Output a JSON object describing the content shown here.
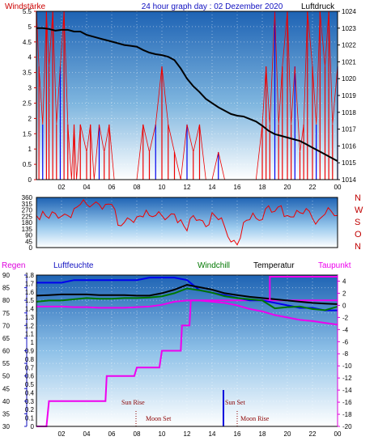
{
  "header": {
    "title": "24 hour graph day : 02 Dezember 2020",
    "left_label": "Windstärke",
    "right_label": "Luftdruck",
    "colors": {
      "title": "#1010c0",
      "left": "#cc0000",
      "right": "#000000"
    }
  },
  "middle": {
    "compass": [
      "N",
      "W",
      "S",
      "O",
      "N"
    ]
  },
  "bottom_header": {
    "regen": "Regen",
    "luftfeuchte": "Luftfeuchte",
    "windchill": "Windchill",
    "temperatur": "Temperatur",
    "taupunkt": "Taupunkt",
    "colors": {
      "regen": "#dd00dd",
      "luftfeuchte": "#1010c0",
      "windchill": "#007700",
      "temperatur": "#000000",
      "taupunkt": "#ee00ee"
    }
  },
  "time_axis": {
    "ticks": [
      "02",
      "04",
      "06",
      "08",
      "10",
      "12",
      "14",
      "16",
      "18",
      "20",
      "22",
      "00"
    ]
  },
  "events": {
    "sun_rise": "Sun Rise",
    "moon_set": "Moon Set",
    "sun_set": "Sun Set",
    "moon_rise": "Moon Rise"
  },
  "chart_data": [
    {
      "type": "line",
      "name": "wind-pressure",
      "x_unit": "hour",
      "xlim": [
        0,
        24
      ],
      "series": [
        {
          "name": "Luftdruck",
          "color": "#000000",
          "axis": "right",
          "x": [
            0,
            0.5,
            1,
            1.5,
            2,
            2.5,
            3,
            3.5,
            4,
            4.5,
            5,
            5.5,
            6,
            6.5,
            7,
            7.5,
            8,
            8.5,
            9,
            9.5,
            10,
            10.5,
            11,
            11.5,
            12,
            12.5,
            13,
            13.5,
            14,
            14.5,
            15,
            15.5,
            16,
            16.5,
            17,
            17.5,
            18,
            18.5,
            19,
            19.5,
            20,
            20.5,
            21,
            21.5,
            22,
            22.5,
            23,
            23.5,
            24
          ],
          "values": [
            1023.0,
            1023.0,
            1022.95,
            1022.85,
            1022.9,
            1022.9,
            1022.8,
            1022.8,
            1022.6,
            1022.5,
            1022.4,
            1022.3,
            1022.2,
            1022.1,
            1022.0,
            1021.95,
            1021.9,
            1021.7,
            1021.55,
            1021.45,
            1021.4,
            1021.3,
            1021.1,
            1020.6,
            1020.0,
            1019.55,
            1019.2,
            1018.8,
            1018.55,
            1018.3,
            1018.1,
            1017.9,
            1017.8,
            1017.75,
            1017.6,
            1017.45,
            1017.2,
            1016.9,
            1016.7,
            1016.6,
            1016.5,
            1016.4,
            1016.3,
            1016.1,
            1015.9,
            1015.7,
            1015.5,
            1015.3,
            1015.1
          ]
        },
        {
          "name": "Windstärke",
          "color": "#ee0000",
          "axis": "left",
          "x": [
            0,
            0.2,
            0.5,
            0.8,
            1.0,
            1.3,
            1.6,
            1.9,
            2.2,
            2.5,
            2.8,
            3.0,
            3.2,
            3.5,
            4.0,
            4.3,
            4.6,
            5.0,
            5.4,
            5.8,
            6.2,
            6.6,
            7.0,
            7.5,
            8.0,
            8.5,
            9.0,
            9.5,
            10.0,
            10.5,
            11.0,
            11.5,
            12.0,
            12.5,
            13.0,
            13.5,
            14.0,
            14.5,
            15.0,
            15.5,
            16.0,
            16.5,
            17.0,
            17.5,
            18.0,
            18.3,
            18.6,
            19.0,
            19.3,
            19.6,
            20.0,
            20.3,
            20.6,
            21.0,
            21.3,
            21.6,
            22.0,
            22.3,
            22.6,
            23.0,
            23.3,
            23.6,
            24.0
          ],
          "values": [
            5.5,
            3.7,
            1.8,
            5.5,
            3.7,
            5.5,
            1.8,
            3.7,
            5.5,
            1.8,
            0,
            1.8,
            0,
            1.8,
            0.9,
            1.8,
            0,
            1.8,
            0.9,
            1.8,
            0,
            0,
            0,
            0,
            0,
            1.8,
            0.9,
            1.8,
            3.7,
            1.8,
            0.9,
            0,
            1.8,
            0.9,
            1.8,
            0,
            0,
            0.9,
            0,
            0,
            0,
            0,
            0,
            0,
            1.8,
            3.7,
            1.8,
            5.5,
            1.8,
            3.7,
            5.5,
            1.8,
            3.7,
            0.9,
            1.8,
            5.5,
            3.7,
            1.8,
            5.5,
            3.7,
            5.5,
            1.8,
            3.7
          ],
          "ylim": [
            0,
            5.5
          ]
        }
      ],
      "left_ticks": [
        "0",
        "0.5",
        "1",
        "1.5",
        "2",
        "2.5",
        "3",
        "3.5",
        "4",
        "4.5",
        "5",
        "5.5"
      ],
      "right_ticks": [
        "1014",
        "1015",
        "1016",
        "1017",
        "1018",
        "1019",
        "1020",
        "1021",
        "1022",
        "1023",
        "1024"
      ],
      "ylim_right": [
        1014,
        1024
      ]
    },
    {
      "type": "line",
      "name": "wind-direction",
      "x_unit": "hour",
      "xlim": [
        0,
        24
      ],
      "ylim": [
        0,
        360
      ],
      "left_ticks": [
        "0",
        "45",
        "90",
        "135",
        "180",
        "225",
        "270",
        "315",
        "360"
      ],
      "series": [
        {
          "name": "direction",
          "color": "#ee0000",
          "x": [
            0,
            0.5,
            1,
            1.5,
            2,
            2.5,
            3,
            3.5,
            4,
            4.5,
            5,
            5.5,
            6,
            6.5,
            7,
            7.5,
            8,
            8.5,
            9,
            9.5,
            10,
            10.5,
            11,
            11.5,
            12,
            12.5,
            13,
            13.5,
            14,
            14.5,
            15,
            15.5,
            16,
            16.5,
            17,
            17.5,
            18,
            18.5,
            19,
            19.5,
            20,
            20.5,
            21,
            21.5,
            22,
            22.5,
            23,
            23.5,
            24
          ],
          "values": [
            230,
            260,
            210,
            245,
            225,
            230,
            280,
            310,
            310,
            310,
            310,
            310,
            310,
            160,
            180,
            200,
            220,
            220,
            230,
            230,
            230,
            220,
            240,
            200,
            120,
            230,
            200,
            150,
            250,
            200,
            150,
            40,
            20,
            180,
            200,
            210,
            200,
            300,
            260,
            300,
            230,
            220,
            250,
            280,
            210,
            200,
            240,
            260,
            230
          ]
        }
      ]
    },
    {
      "type": "line",
      "name": "humidity-temperature-rain",
      "x_unit": "hour",
      "xlim": [
        0,
        24
      ],
      "left_ticks_regen": [
        "0",
        "0.1",
        "0.2",
        "0.3",
        "0.4",
        "0.5",
        "0.6",
        "0.7",
        "0.8",
        "0.9",
        "1",
        "1.1",
        "1.2",
        "1.3",
        "1.4",
        "1.5",
        "1.6",
        "1.7",
        "1.8"
      ],
      "left_ticks_humidity": [
        "30",
        "35",
        "40",
        "45",
        "50",
        "55",
        "60",
        "65",
        "70",
        "75",
        "80",
        "85",
        "90"
      ],
      "right_ticks_temp": [
        "-20",
        "-18",
        "-16",
        "-14",
        "-12",
        "-10",
        "-8",
        "-6",
        "-4",
        "-2",
        "0",
        "2",
        "4"
      ],
      "ylim_regen": [
        0,
        1.8
      ],
      "ylim_humidity": [
        30,
        90
      ],
      "ylim_temp": [
        -20,
        5
      ],
      "series": [
        {
          "name": "Regen",
          "color": "#ee00ee",
          "axis": "regen",
          "x": [
            0,
            0.8,
            1.0,
            5.5,
            5.6,
            7.8,
            8.0,
            9.8,
            10.0,
            11.5,
            11.6,
            12.2,
            12.3,
            24
          ],
          "values": [
            0,
            0,
            0.3,
            0.3,
            0.6,
            0.6,
            0.7,
            0.7,
            0.9,
            0.9,
            1.2,
            1.2,
            1.5,
            1.5
          ]
        },
        {
          "name": "Luftfeuchte",
          "color": "#0000ee",
          "axis": "humidity",
          "x": [
            0,
            1,
            2,
            3,
            4,
            5,
            6,
            7,
            8,
            9,
            10,
            11,
            12,
            13,
            14,
            15,
            16,
            17,
            18,
            19,
            20,
            21,
            22,
            23,
            24
          ],
          "values": [
            87,
            87,
            87,
            88,
            88,
            88,
            88,
            88,
            88,
            89,
            89,
            89,
            88,
            84,
            83,
            82,
            81,
            80,
            80,
            79,
            78,
            77,
            77,
            76,
            76
          ]
        },
        {
          "name": "Temperatur",
          "color": "#000000",
          "axis": "temp",
          "x": [
            0,
            1,
            2,
            3,
            4,
            5,
            6,
            7,
            8,
            9,
            10,
            11,
            12,
            13,
            14,
            15,
            16,
            17,
            18,
            19,
            20,
            21,
            22,
            23,
            24
          ],
          "values": [
            1.6,
            1.7,
            1.8,
            1.8,
            1.8,
            1.7,
            1.7,
            1.7,
            1.6,
            1.6,
            2.0,
            2.6,
            3.4,
            3.0,
            2.6,
            2.0,
            1.7,
            1.4,
            1.2,
            1.0,
            0.8,
            0.6,
            0.4,
            0.3,
            0.2
          ]
        },
        {
          "name": "Windchill",
          "color": "#007700",
          "axis": "temp",
          "x": [
            0,
            1,
            2,
            3,
            4,
            5,
            6,
            7,
            8,
            9,
            10,
            11,
            12,
            13,
            14,
            15,
            16,
            17,
            18,
            19,
            20,
            21,
            22,
            23,
            24
          ],
          "values": [
            0.6,
            0.8,
            0.8,
            1.0,
            1.2,
            1.1,
            1.1,
            1.2,
            1.2,
            1.3,
            1.5,
            2.0,
            2.8,
            2.5,
            2.1,
            1.5,
            1.2,
            1.0,
            0.8,
            -0.5,
            -0.3,
            -0.2,
            -0.6,
            -0.8,
            -0.2
          ]
        },
        {
          "name": "Taupunkt",
          "color": "#ee00ee",
          "axis": "temp",
          "x": [
            0,
            1,
            2,
            3,
            4,
            5,
            6,
            7,
            8,
            9,
            10,
            11,
            12,
            13,
            14,
            15,
            16,
            17,
            18,
            19,
            20,
            21,
            22,
            23,
            24
          ],
          "values": [
            -0.2,
            -0.2,
            -0.2,
            -0.3,
            -0.3,
            -0.4,
            -0.4,
            -0.4,
            -0.3,
            -0.2,
            0.1,
            0.6,
            0.8,
            0.8,
            0.6,
            0.4,
            0.0,
            -0.6,
            -1.0,
            -1.6,
            -2.0,
            -2.4,
            -2.6,
            -2.9,
            -3.2
          ]
        }
      ]
    }
  ]
}
